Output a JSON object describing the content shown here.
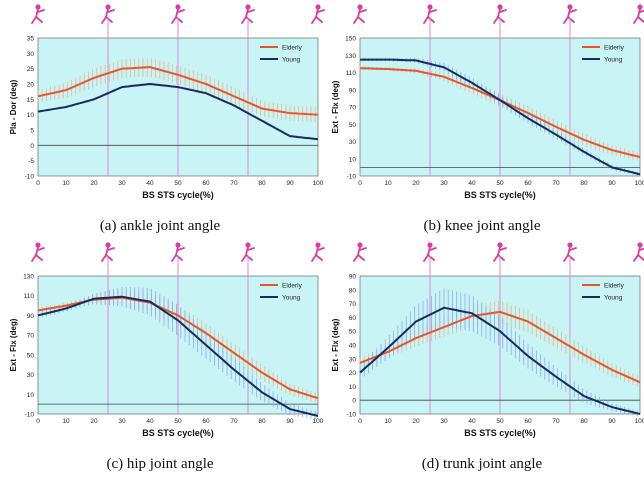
{
  "chart_data": [
    {
      "type": "line",
      "caption": "(a) ankle joint angle",
      "xlabel": "BS STS cycle(%)",
      "ylabel": "Pla - Dor (deg)",
      "xlim": [
        0,
        100
      ],
      "ylim": [
        -10,
        35
      ],
      "yticks": [
        -10,
        -5,
        0,
        5,
        10,
        15,
        20,
        25,
        30,
        35
      ],
      "xticks": [
        0,
        10,
        20,
        30,
        40,
        50,
        60,
        70,
        80,
        90,
        100
      ],
      "phase_lines": [
        25,
        50,
        75
      ],
      "legend_position": "top-right",
      "x": [
        0,
        10,
        20,
        30,
        40,
        50,
        60,
        70,
        80,
        90,
        100
      ],
      "series": [
        {
          "name": "Elderly",
          "color": "#e8552a",
          "band_color": "#e8b28a",
          "values": [
            16,
            18,
            22,
            25,
            25.5,
            23,
            20,
            16,
            12,
            10.5,
            10
          ],
          "sd": [
            2,
            2.5,
            3,
            3,
            3,
            3,
            3,
            3,
            2.5,
            2.5,
            2.5
          ]
        },
        {
          "name": "Young",
          "color": "#1a2a5c",
          "band_color": "#8aa8e8",
          "values": [
            11,
            12.5,
            15,
            19,
            20,
            19,
            17,
            13,
            8,
            3,
            2
          ],
          "sd": [
            0,
            0,
            0,
            0,
            0,
            0,
            0,
            0,
            0,
            0,
            0
          ]
        }
      ]
    },
    {
      "type": "line",
      "caption": "(b) knee joint angle",
      "xlabel": "BS STS cycle(%)",
      "ylabel": "Ext - Flx (deg)",
      "xlim": [
        0,
        100
      ],
      "ylim": [
        -10,
        150
      ],
      "yticks": [
        -10,
        10,
        30,
        50,
        70,
        90,
        110,
        130,
        150
      ],
      "xticks": [
        0,
        10,
        20,
        30,
        40,
        50,
        60,
        70,
        80,
        90,
        100
      ],
      "phase_lines": [
        25,
        50,
        75
      ],
      "legend_position": "top-right",
      "x": [
        0,
        10,
        20,
        30,
        40,
        50,
        60,
        70,
        80,
        90,
        100
      ],
      "series": [
        {
          "name": "Elderly",
          "color": "#e8552a",
          "band_color": "#e8b28a",
          "values": [
            115,
            114,
            112,
            105,
            92,
            78,
            63,
            47,
            32,
            20,
            12
          ],
          "sd": [
            2,
            2,
            3,
            5,
            7,
            8,
            8,
            8,
            7,
            6,
            5
          ]
        },
        {
          "name": "Young",
          "color": "#1a2a5c",
          "band_color": "#8aa8e8",
          "values": [
            125,
            125,
            124,
            116,
            98,
            78,
            57,
            38,
            18,
            0,
            -8
          ],
          "sd": [
            2,
            2,
            3,
            5,
            6,
            6,
            6,
            5,
            4,
            3,
            2
          ]
        }
      ]
    },
    {
      "type": "line",
      "caption": "(c) hip joint angle",
      "xlabel": "BS STS cycle(%)",
      "ylabel": "Ext - Flx (deg)",
      "xlim": [
        0,
        100
      ],
      "ylim": [
        -10,
        130
      ],
      "yticks": [
        -10,
        10,
        30,
        50,
        70,
        90,
        110,
        130
      ],
      "xticks": [
        0,
        10,
        20,
        30,
        40,
        50,
        60,
        70,
        80,
        90,
        100
      ],
      "phase_lines": [
        25,
        50,
        75
      ],
      "legend_position": "top-right",
      "x": [
        0,
        10,
        20,
        30,
        40,
        50,
        60,
        70,
        80,
        90,
        100
      ],
      "series": [
        {
          "name": "Elderly",
          "color": "#e8552a",
          "band_color": "#e8b28a",
          "values": [
            95,
            100,
            106,
            108,
            103,
            90,
            72,
            52,
            32,
            15,
            6
          ],
          "sd": [
            3,
            3,
            5,
            8,
            10,
            10,
            10,
            9,
            8,
            6,
            5
          ]
        },
        {
          "name": "Young",
          "color": "#1a2a5c",
          "band_color": "#8aa8e8",
          "values": [
            90,
            97,
            107,
            109,
            104,
            85,
            60,
            35,
            12,
            -5,
            -12
          ],
          "sd": [
            3,
            3,
            5,
            10,
            14,
            16,
            14,
            12,
            9,
            6,
            4
          ]
        }
      ]
    },
    {
      "type": "line",
      "caption": "(d) trunk joint angle",
      "xlabel": "BS STS cycle(%)",
      "ylabel": "Ext - Flx (deg)",
      "xlim": [
        0,
        100
      ],
      "ylim": [
        -10,
        90
      ],
      "yticks": [
        -10,
        0,
        10,
        20,
        30,
        40,
        50,
        60,
        70,
        80,
        90
      ],
      "xticks": [
        0,
        10,
        20,
        30,
        40,
        50,
        60,
        70,
        80,
        90,
        100
      ],
      "phase_lines": [
        25,
        50,
        75
      ],
      "legend_position": "top-right",
      "x": [
        0,
        10,
        20,
        30,
        40,
        50,
        60,
        70,
        80,
        90,
        100
      ],
      "series": [
        {
          "name": "Elderly",
          "color": "#e8552a",
          "band_color": "#e8b28a",
          "values": [
            27,
            35,
            45,
            53,
            61,
            64,
            57,
            45,
            33,
            22,
            13
          ],
          "sd": [
            4,
            5,
            6,
            7,
            8,
            8,
            8,
            7,
            6,
            5,
            4
          ]
        },
        {
          "name": "Young",
          "color": "#1a2a5c",
          "band_color": "#8aa8e8",
          "values": [
            20,
            38,
            57,
            67,
            63,
            50,
            32,
            17,
            3,
            -5,
            -10
          ],
          "sd": [
            5,
            8,
            12,
            14,
            13,
            11,
            9,
            7,
            5,
            3,
            2
          ]
        }
      ]
    }
  ]
}
